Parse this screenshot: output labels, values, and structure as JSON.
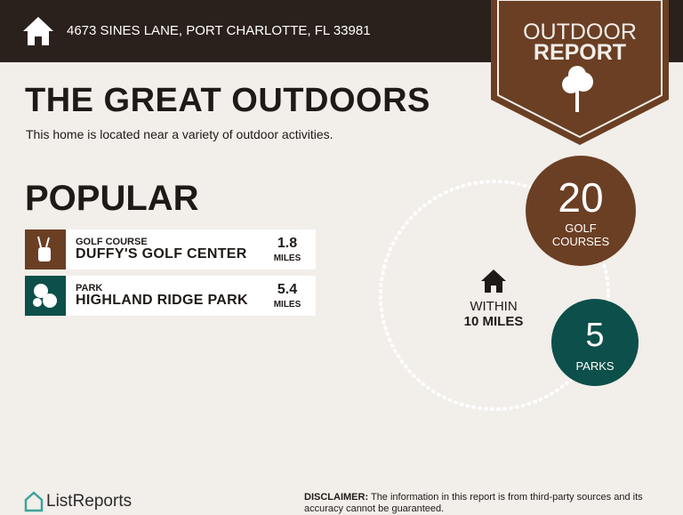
{
  "header": {
    "address": "4673 SINES LANE, PORT CHARLOTTE, FL 33981"
  },
  "badge": {
    "line1": "OUTDOOR",
    "line2": "REPORT"
  },
  "title": "THE GREAT OUTDOORS",
  "subtitle": "This home is located near a variety of outdoor activities.",
  "popular": {
    "heading": "POPULAR",
    "items": [
      {
        "category": "GOLF COURSE",
        "name": "DUFFY'S GOLF CENTER",
        "distance": 1.8,
        "unit": "MILES"
      },
      {
        "category": "PARK",
        "name": "HIGHLAND RIDGE PARK",
        "distance": 5.4,
        "unit": "MILES"
      }
    ]
  },
  "radius": {
    "line1": "WITHIN",
    "line2": "10 MILES"
  },
  "stats": [
    {
      "count": 20,
      "label": "GOLF COURSES"
    },
    {
      "count": 5,
      "label": "PARKS"
    }
  ],
  "footer": {
    "brand": "ListReports",
    "disclaimer_label": "DISCLAIMER:",
    "disclaimer": "The information in this report is from third-party sources and its accuracy cannot be guaranteed."
  }
}
